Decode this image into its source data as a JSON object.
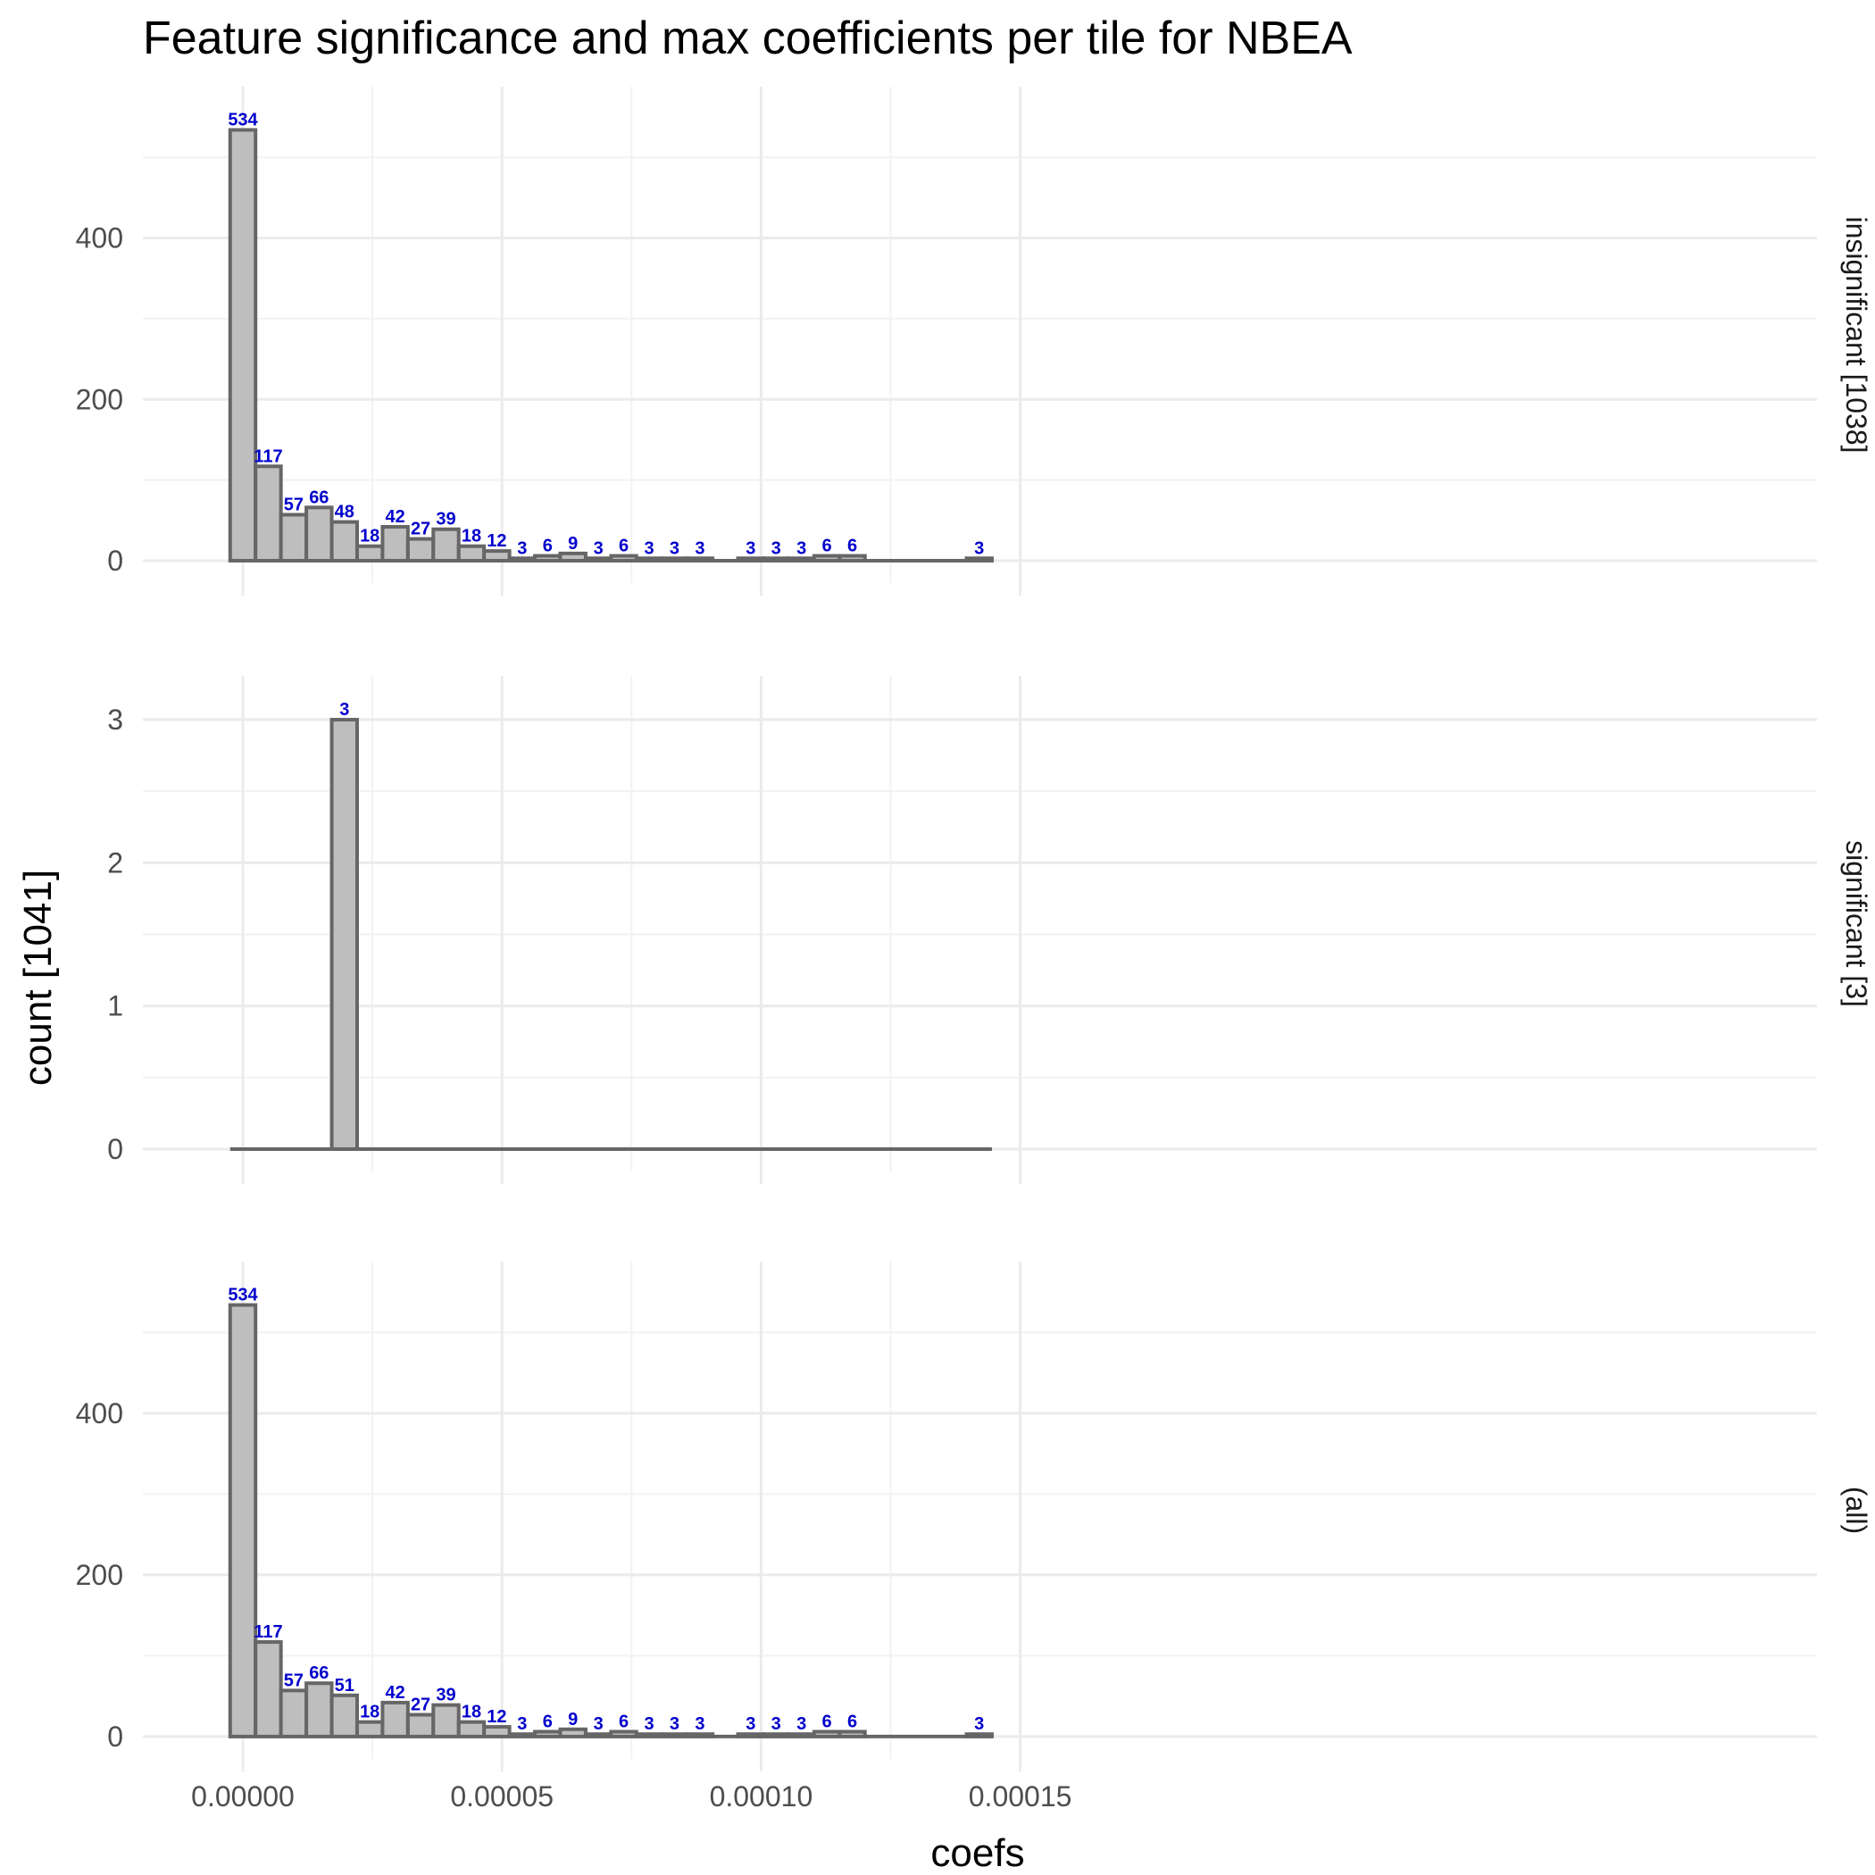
{
  "chart_data": {
    "type": "bar",
    "title": "Feature significance and max coefficients per tile for NBEA",
    "xlabel": "coefs",
    "ylabel": "count [1041]",
    "xlim": [
      -1.95e-05,
      1.55e-05
    ],
    "x_ticks": [
      "0.00000",
      "0.00005",
      "0.00010",
      "0.00015"
    ],
    "x_tick_values": [
      0,
      5e-05,
      0.0001,
      0.00015
    ],
    "bin_width": 4.9e-06,
    "bin_start": -2.45e-06,
    "grid": true,
    "panels": [
      {
        "strip": "insignificant [1038]",
        "ylim": [
          0,
          560
        ],
        "y_ticks": [
          0,
          200,
          400
        ],
        "values": [
          534,
          117,
          57,
          66,
          48,
          18,
          42,
          27,
          39,
          18,
          12,
          3,
          6,
          9,
          3,
          6,
          3,
          3,
          3,
          0,
          3,
          3,
          3,
          6,
          6,
          0,
          0,
          0,
          0,
          3
        ]
      },
      {
        "strip": "significant [3]",
        "ylim": [
          0,
          3.15
        ],
        "y_ticks": [
          0,
          1,
          2,
          3
        ],
        "values": [
          0,
          0,
          0,
          0,
          3,
          0,
          0,
          0,
          0,
          0,
          0,
          0,
          0,
          0,
          0,
          0,
          0,
          0,
          0,
          0,
          0,
          0,
          0,
          0,
          0,
          0,
          0,
          0,
          0,
          0
        ]
      },
      {
        "strip": "(all)",
        "ylim": [
          0,
          560
        ],
        "y_ticks": [
          0,
          200,
          400
        ],
        "values": [
          534,
          117,
          57,
          66,
          51,
          18,
          42,
          27,
          39,
          18,
          12,
          3,
          6,
          9,
          3,
          6,
          3,
          3,
          3,
          0,
          3,
          3,
          3,
          6,
          6,
          0,
          0,
          0,
          0,
          3
        ]
      }
    ]
  }
}
